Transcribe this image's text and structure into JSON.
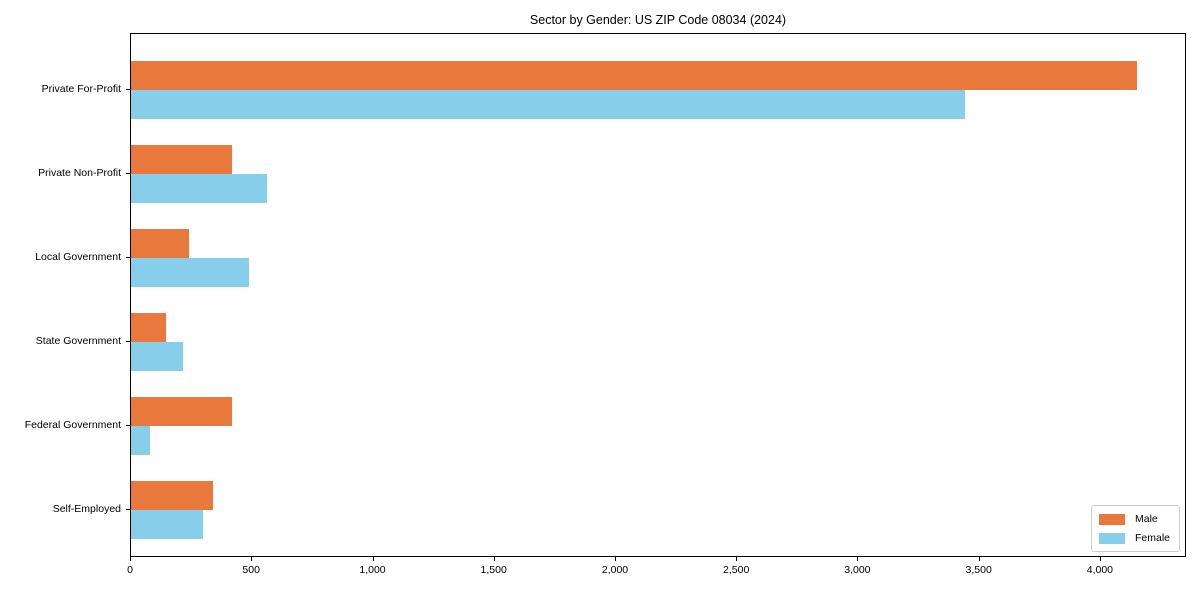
{
  "chart_data": {
    "type": "bar",
    "orientation": "horizontal",
    "title": "Sector by Gender: US ZIP Code 08034 (2024)",
    "categories": [
      "Private For-Profit",
      "Private Non-Profit",
      "Local Government",
      "State Government",
      "Federal Government",
      "Self-Employed"
    ],
    "series": [
      {
        "name": "Male",
        "color": "#e8783c",
        "values": [
          4150,
          415,
          240,
          145,
          415,
          340
        ]
      },
      {
        "name": "Female",
        "color": "#87ceeb",
        "values": [
          3440,
          560,
          485,
          215,
          80,
          295
        ]
      }
    ],
    "xlabel": "",
    "ylabel": "",
    "xlim": [
      0,
      4355
    ],
    "xticks": [
      0,
      500,
      1000,
      1500,
      2000,
      2500,
      3000,
      3500,
      4000
    ],
    "xtick_labels": [
      "0",
      "500",
      "1,000",
      "1,500",
      "2,000",
      "2,500",
      "3,000",
      "3,500",
      "4,000"
    ],
    "grid": false,
    "legend_position": "lower right",
    "colors": {
      "spine": "#000000",
      "text": "#000000",
      "legend_border": "#cccccc",
      "background": "#ffffff"
    }
  }
}
